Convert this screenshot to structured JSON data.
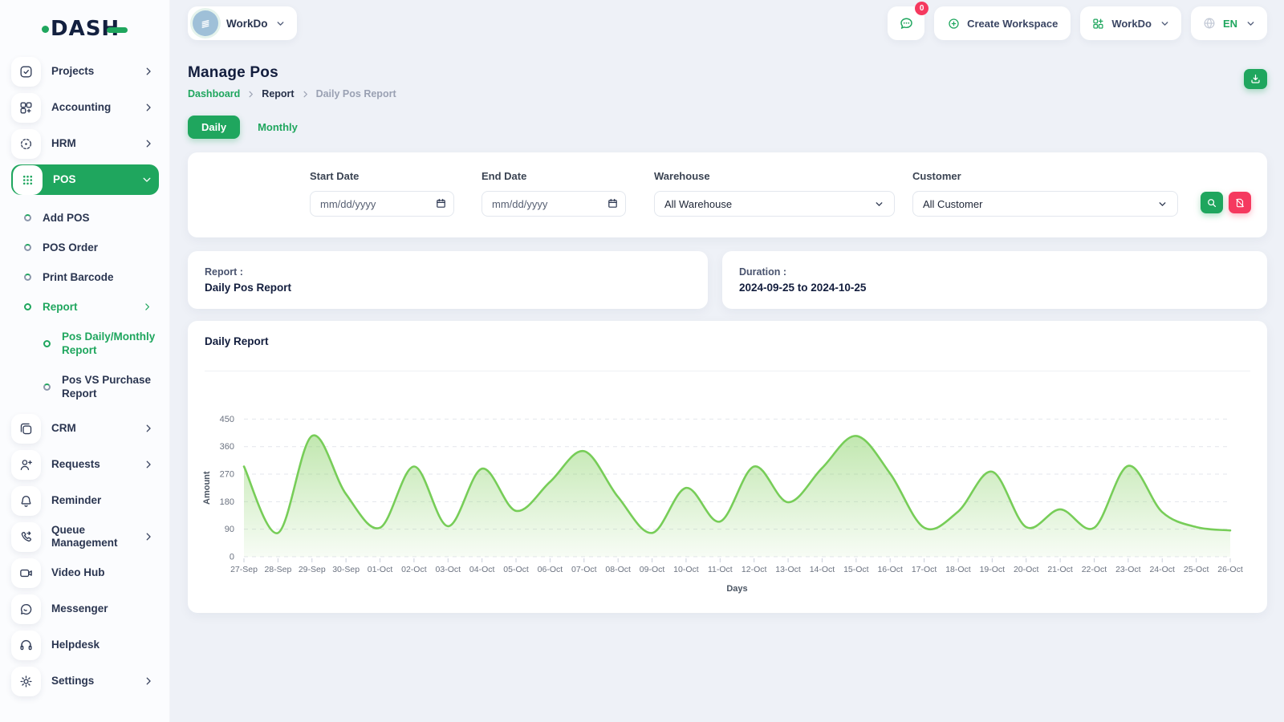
{
  "brand": {
    "name": "DASH"
  },
  "topbar": {
    "workspace": {
      "label": "WorkDo",
      "avatar_icon": "building-icon"
    },
    "messages": {
      "badge": "0",
      "icon": "chat-bubble-icon"
    },
    "create_workspace_label": "Create Workspace",
    "workdo_menu_label": "WorkDo",
    "language": {
      "code": "EN",
      "icon": "globe-icon"
    }
  },
  "page": {
    "title": "Manage Pos",
    "breadcrumb": [
      {
        "label": "Dashboard"
      },
      {
        "label": "Report"
      },
      {
        "label": "Daily Pos Report"
      }
    ],
    "tabs": [
      {
        "label": "Daily",
        "active": true
      },
      {
        "label": "Monthly",
        "active": false
      }
    ]
  },
  "filters": {
    "start_date": {
      "label": "Start Date",
      "placeholder": "mm/dd/yyyy"
    },
    "end_date": {
      "label": "End Date",
      "placeholder": "mm/dd/yyyy"
    },
    "warehouse": {
      "label": "Warehouse",
      "selected": "All Warehouse"
    },
    "customer": {
      "label": "Customer",
      "selected": "All Customer"
    }
  },
  "summary": {
    "report": {
      "label": "Report :",
      "value": "Daily Pos Report"
    },
    "duration": {
      "label": "Duration :",
      "value": "2024-09-25 to 2024-10-25"
    }
  },
  "chart_card": {
    "title": "Daily Report"
  },
  "chart_data": {
    "type": "area",
    "title": "Daily Report",
    "xlabel": "Days",
    "ylabel": "Amount",
    "ylim": [
      0,
      450
    ],
    "yticks": [
      0,
      90,
      180,
      270,
      360,
      450
    ],
    "grid": "dashed-horizontal",
    "line_color": "#77cd58",
    "fill_color": "#8fd46f",
    "categories": [
      "27-Sep",
      "28-Sep",
      "29-Sep",
      "30-Sep",
      "01-Oct",
      "02-Oct",
      "03-Oct",
      "04-Oct",
      "05-Oct",
      "06-Oct",
      "07-Oct",
      "08-Oct",
      "09-Oct",
      "10-Oct",
      "11-Oct",
      "12-Oct",
      "13-Oct",
      "14-Oct",
      "15-Oct",
      "16-Oct",
      "17-Oct",
      "18-Oct",
      "19-Oct",
      "20-Oct",
      "21-Oct",
      "22-Oct",
      "23-Oct",
      "24-Oct",
      "25-Oct",
      "26-Oct"
    ],
    "values": [
      295,
      78,
      395,
      205,
      95,
      295,
      100,
      288,
      150,
      245,
      345,
      195,
      78,
      225,
      115,
      295,
      178,
      290,
      395,
      272,
      95,
      148,
      278,
      97,
      155,
      95,
      297,
      146,
      97,
      86
    ]
  },
  "sidebar": {
    "items": [
      {
        "label": "Projects",
        "icon": "tasks-icon",
        "chevron": "right"
      },
      {
        "label": "Accounting",
        "icon": "accounting-icon",
        "chevron": "right"
      },
      {
        "label": "HRM",
        "icon": "hrm-icon",
        "chevron": "right"
      },
      {
        "label": "POS",
        "icon": "pos-icon",
        "chevron": "down",
        "active": true,
        "children": [
          {
            "label": "Add POS"
          },
          {
            "label": "POS Order"
          },
          {
            "label": "Print Barcode"
          },
          {
            "label": "Report",
            "active": true,
            "chevron": "right",
            "children": [
              {
                "label": "Pos Daily/Monthly Report",
                "active": true
              },
              {
                "label": "Pos VS Purchase Report"
              }
            ]
          }
        ]
      },
      {
        "label": "CRM",
        "icon": "crm-icon",
        "chevron": "right"
      },
      {
        "label": "Requests",
        "icon": "requests-icon",
        "chevron": "right"
      },
      {
        "label": "Reminder",
        "icon": "reminder-icon"
      },
      {
        "label": "Queue Management",
        "icon": "queue-management-icon",
        "chevron": "right"
      },
      {
        "label": "Video Hub",
        "icon": "video-hub-icon"
      },
      {
        "label": "Messenger",
        "icon": "messenger-icon"
      },
      {
        "label": "Helpdesk",
        "icon": "helpdesk-icon"
      },
      {
        "label": "Settings",
        "icon": "settings-icon",
        "chevron": "right"
      }
    ]
  },
  "colors": {
    "primary_green": "#1fa65e",
    "danger_red": "#f5395f",
    "heading": "#121d3d",
    "chart_line": "#77cd58",
    "chart_fill": "#8fd46f"
  }
}
